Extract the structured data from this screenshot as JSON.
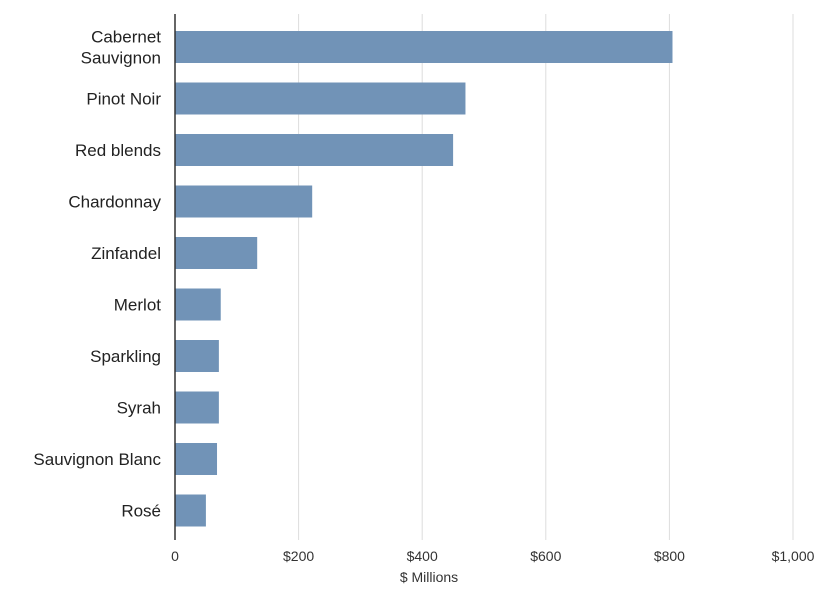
{
  "chart_data": {
    "type": "bar",
    "orientation": "horizontal",
    "categories": [
      [
        "Cabernet",
        "Sauvignon"
      ],
      [
        "Pinot Noir"
      ],
      [
        "Red blends"
      ],
      [
        "Chardonnay"
      ],
      [
        "Zinfandel"
      ],
      [
        "Merlot"
      ],
      [
        "Sparkling"
      ],
      [
        "Syrah"
      ],
      [
        "Sauvignon Blanc"
      ],
      [
        "Rosé"
      ]
    ],
    "values": [
      805,
      470,
      450,
      222,
      133,
      74,
      71,
      71,
      68,
      50
    ],
    "xlabel": "$ Millions",
    "ylabel": "",
    "xlim": [
      0,
      1000
    ],
    "xticks": [
      0,
      200,
      400,
      600,
      800,
      1000
    ],
    "xtick_labels": [
      "0",
      "$200",
      "$400",
      "$600",
      "$800",
      "$1,000"
    ],
    "grid": "vertical",
    "bar_color": "#7193b7",
    "grid_color": "#dddddd",
    "axis_color": "#333333"
  }
}
